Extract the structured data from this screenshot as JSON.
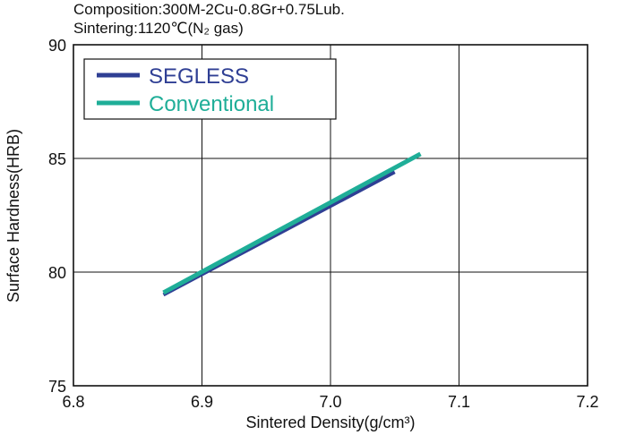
{
  "chart_data": {
    "type": "line",
    "notes": [
      "Composition:300M-2Cu-0.8Gr+0.75Lub.",
      "Sintering:1120℃(N₂ gas)"
    ],
    "xlabel": "Sintered Density(g/cm³)",
    "ylabel": "Surface Hardness(HRB)",
    "xlim": [
      6.8,
      7.2
    ],
    "ylim": [
      75,
      90
    ],
    "x_ticks": [
      6.8,
      6.9,
      7.0,
      7.1,
      7.2
    ],
    "x_tick_labels": [
      "6.8",
      "6.9",
      "7.0",
      "7.1",
      "7.2"
    ],
    "y_ticks": [
      75,
      80,
      85,
      90
    ],
    "y_tick_labels": [
      "75",
      "80",
      "85",
      "90"
    ],
    "grid": true,
    "legend_position": "top-left",
    "series": [
      {
        "name": "SEGLESS",
        "color": "#2f3f94",
        "x": [
          6.87,
          7.05
        ],
        "y": [
          79.0,
          84.4
        ]
      },
      {
        "name": "Conventional",
        "color": "#1fae98",
        "x": [
          6.87,
          7.07
        ],
        "y": [
          79.1,
          85.2
        ]
      }
    ]
  }
}
